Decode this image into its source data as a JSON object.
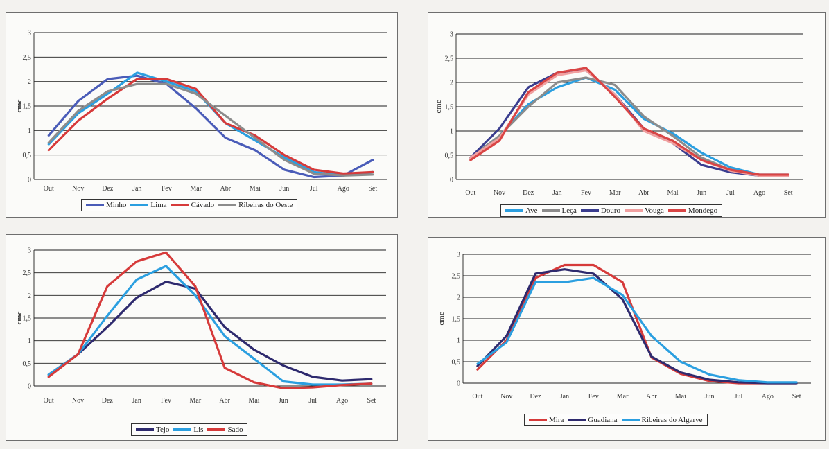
{
  "chart_data": [
    {
      "type": "line",
      "ylabel": "cmc",
      "ylim": [
        0,
        3
      ],
      "yticks": [
        "0",
        "0,5",
        "1",
        "1,5",
        "2",
        "2,5",
        "3"
      ],
      "categories": [
        "Out",
        "Nov",
        "Dez",
        "Jan",
        "Fev",
        "Mar",
        "Abr",
        "Mai",
        "Jun",
        "Jul",
        "Ago",
        "Set"
      ],
      "series": [
        {
          "name": "Minho",
          "color": "#4a5cb8",
          "values": [
            0.9,
            1.6,
            2.05,
            2.12,
            1.95,
            1.45,
            0.85,
            0.6,
            0.2,
            0.05,
            0.08,
            0.4
          ]
        },
        {
          "name": "Lima",
          "color": "#2b9fe0",
          "values": [
            0.72,
            1.35,
            1.75,
            2.18,
            2.0,
            1.8,
            1.15,
            0.8,
            0.45,
            0.15,
            0.08,
            0.15
          ]
        },
        {
          "name": "Cávado",
          "color": "#d63a3a",
          "values": [
            0.6,
            1.2,
            1.65,
            2.05,
            2.05,
            1.85,
            1.15,
            0.9,
            0.5,
            0.2,
            0.12,
            0.15
          ]
        },
        {
          "name": "Ribeiras do Oeste",
          "color": "#8c8c8c",
          "values": [
            0.75,
            1.4,
            1.8,
            1.95,
            1.95,
            1.75,
            1.3,
            0.85,
            0.4,
            0.12,
            0.08,
            0.1
          ]
        }
      ],
      "legend": "bottom"
    },
    {
      "type": "line",
      "ylabel": "cmc",
      "ylim": [
        0,
        3
      ],
      "yticks": [
        "0",
        "0,5",
        "1",
        "1,5",
        "2",
        "2,5",
        "3"
      ],
      "categories": [
        "Out",
        "Nov",
        "Dez",
        "Jan",
        "Fev",
        "Mar",
        "Abr",
        "Mai",
        "Jun",
        "Jul",
        "Ago",
        "Set"
      ],
      "series": [
        {
          "name": "Ave",
          "color": "#2b9fe0",
          "values": [
            0.45,
            0.9,
            1.55,
            1.9,
            2.1,
            1.85,
            1.25,
            0.95,
            0.55,
            0.25,
            0.1,
            0.1
          ]
        },
        {
          "name": "Leça",
          "color": "#8c8c8c",
          "values": [
            0.45,
            0.9,
            1.5,
            2.0,
            2.1,
            1.95,
            1.3,
            0.9,
            0.45,
            0.2,
            0.08,
            0.08
          ]
        },
        {
          "name": "Douro",
          "color": "#3a3d8f",
          "values": [
            0.45,
            1.05,
            1.9,
            2.2,
            2.25,
            1.75,
            1.05,
            0.75,
            0.3,
            0.15,
            0.08,
            0.08
          ]
        },
        {
          "name": "Vouga",
          "color": "#f0a0a0",
          "values": [
            0.45,
            0.85,
            1.75,
            2.15,
            2.25,
            1.75,
            1.0,
            0.75,
            0.4,
            0.18,
            0.08,
            0.08
          ]
        },
        {
          "name": "Mondego",
          "color": "#d94545",
          "values": [
            0.4,
            0.8,
            1.8,
            2.2,
            2.3,
            1.7,
            1.05,
            0.8,
            0.4,
            0.2,
            0.1,
            0.1
          ]
        }
      ],
      "legend": "bottom"
    },
    {
      "type": "line",
      "ylabel": "cmc",
      "ylim": [
        0,
        3
      ],
      "yticks": [
        "0",
        "0,5",
        "1",
        "1,5",
        "2",
        "2,5",
        "3"
      ],
      "categories": [
        "Out",
        "Nov",
        "Dez",
        "Jan",
        "Fev",
        "Mar",
        "Abr",
        "Mai",
        "Jun",
        "Jul",
        "Ago",
        "Set"
      ],
      "series": [
        {
          "name": "Tejo",
          "color": "#2e2a6e",
          "values": [
            0.25,
            0.7,
            1.3,
            1.95,
            2.3,
            2.15,
            1.3,
            0.8,
            0.45,
            0.2,
            0.12,
            0.15
          ]
        },
        {
          "name": "Lis",
          "color": "#2b9fe0",
          "values": [
            0.25,
            0.7,
            1.55,
            2.35,
            2.65,
            2.0,
            1.1,
            0.6,
            0.1,
            0.03,
            0.03,
            0.05
          ]
        },
        {
          "name": "Sado",
          "color": "#d63a3a",
          "values": [
            0.2,
            0.7,
            2.2,
            2.75,
            2.95,
            2.2,
            0.4,
            0.08,
            -0.05,
            -0.03,
            0.02,
            0.05
          ]
        }
      ],
      "legend": "bottom"
    },
    {
      "type": "line",
      "ylabel": "cmc",
      "ylim": [
        0,
        3
      ],
      "yticks": [
        "0",
        "0,5",
        "1",
        "1,5",
        "2",
        "2,5",
        "3"
      ],
      "categories": [
        "Out",
        "Nov",
        "Dez",
        "Jan",
        "Fev",
        "Mar",
        "Abr",
        "Mai",
        "Jun",
        "Jul",
        "Ago",
        "Set"
      ],
      "series": [
        {
          "name": "Mira",
          "color": "#d63a3a",
          "values": [
            0.32,
            1.0,
            2.45,
            2.75,
            2.75,
            2.35,
            0.6,
            0.22,
            0.05,
            0.0,
            0.0,
            0.0
          ]
        },
        {
          "name": "Guadiana",
          "color": "#2e2a6e",
          "values": [
            0.4,
            1.1,
            2.55,
            2.65,
            2.55,
            1.95,
            0.62,
            0.25,
            0.08,
            0.02,
            0.0,
            0.0
          ]
        },
        {
          "name": "Ribeiras do Algarve",
          "color": "#2b9fe0",
          "values": [
            0.45,
            0.95,
            2.35,
            2.35,
            2.45,
            2.05,
            1.1,
            0.5,
            0.2,
            0.07,
            0.02,
            0.02
          ]
        }
      ],
      "legend": "bottom"
    }
  ]
}
